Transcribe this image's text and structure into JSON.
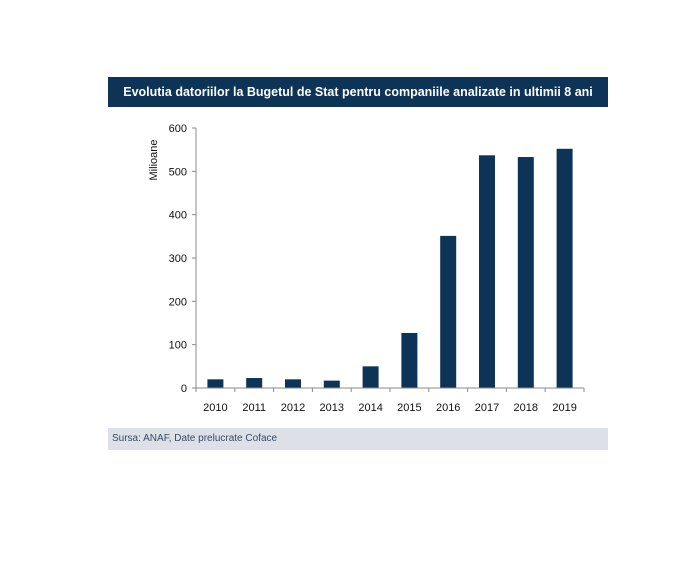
{
  "chart_data": {
    "type": "bar",
    "title": "Evolutia datoriilor la Bugetul de Stat pentru companiile analizate in ultimii 8 ani",
    "ylabel": "Milioane",
    "xlabel": "",
    "categories": [
      "2010",
      "2011",
      "2012",
      "2013",
      "2014",
      "2015",
      "2016",
      "2017",
      "2018",
      "2019"
    ],
    "values": [
      20,
      23,
      20,
      17,
      50,
      127,
      351,
      537,
      533,
      552
    ],
    "ylim": [
      0,
      600
    ],
    "yticks": [
      0,
      100,
      200,
      300,
      400,
      500,
      600
    ],
    "bar_color": "#0d3357",
    "grid": false,
    "legend": "none"
  },
  "source": "Sursa: ANAF, Date prelucrate Coface"
}
